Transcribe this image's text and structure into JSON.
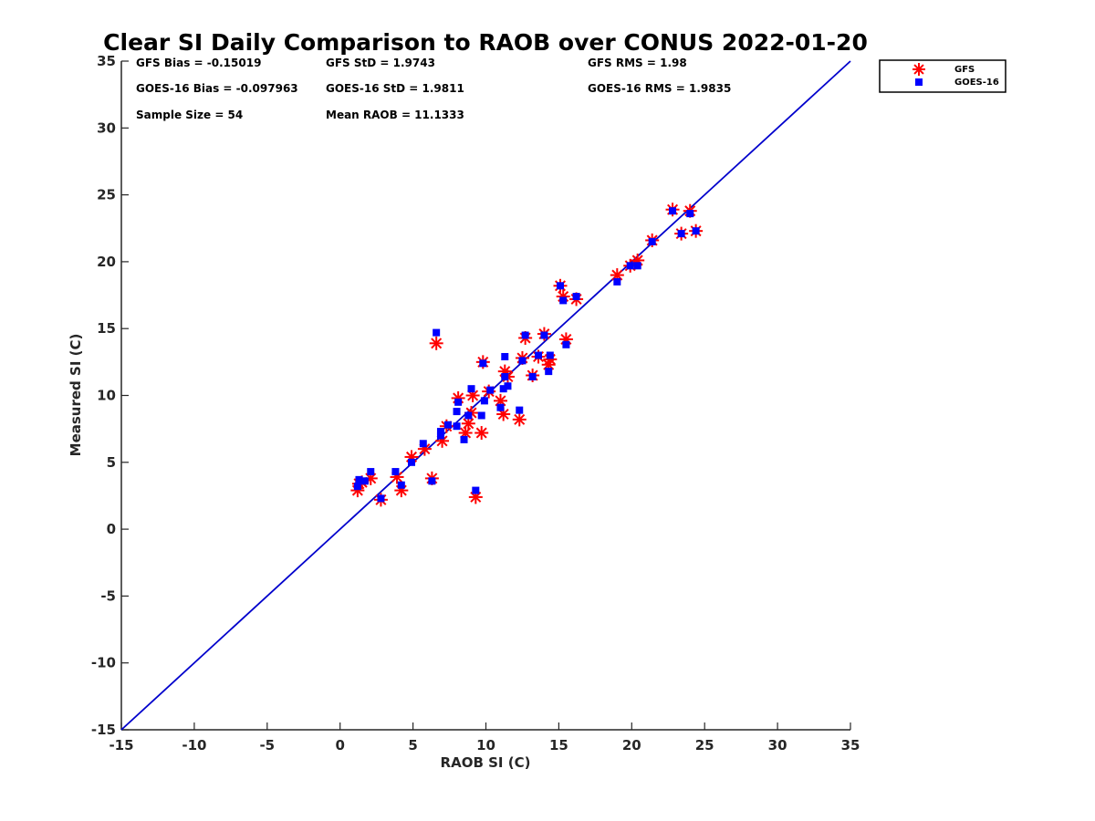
{
  "chart_data": {
    "type": "scatter",
    "title": "Clear SI Daily Comparison to RAOB over CONUS 2022-01-20",
    "xlabel": "RAOB SI (C)",
    "ylabel": "Measured SI (C)",
    "xlim": [
      -15,
      35
    ],
    "ylim": [
      -15,
      35
    ],
    "xticks": [
      "-15",
      "-10",
      "-5",
      "0",
      "5",
      "10",
      "15",
      "20",
      "25",
      "30",
      "35"
    ],
    "yticks": [
      "-15",
      "-10",
      "-5",
      "0",
      "5",
      "10",
      "15",
      "20",
      "25",
      "30",
      "35"
    ],
    "grid": false,
    "legend_position": "outside-top-right",
    "reference_line": {
      "from": [
        -15,
        -15
      ],
      "to": [
        35,
        35
      ],
      "color": "#0000cc"
    },
    "stats": [
      {
        "text": "GFS Bias = -0.15019"
      },
      {
        "text": "GFS StD = 1.9743"
      },
      {
        "text": "GFS RMS = 1.98"
      },
      {
        "text": "GOES-16 Bias = -0.097963"
      },
      {
        "text": "GOES-16 StD = 1.9811"
      },
      {
        "text": "GOES-16 RMS = 1.9835"
      },
      {
        "text": "Sample Size = 54"
      },
      {
        "text": "Mean RAOB = 11.1333"
      }
    ],
    "series": [
      {
        "name": "GFS",
        "marker": "asterisk",
        "color": "#ff0000",
        "points": [
          [
            1.2,
            2.9
          ],
          [
            1.3,
            3.4
          ],
          [
            1.5,
            3.5
          ],
          [
            2.1,
            3.8
          ],
          [
            2.8,
            2.2
          ],
          [
            3.9,
            3.9
          ],
          [
            4.2,
            2.9
          ],
          [
            4.9,
            5.4
          ],
          [
            5.8,
            6.0
          ],
          [
            6.3,
            3.8
          ],
          [
            6.6,
            13.9
          ],
          [
            7.0,
            6.6
          ],
          [
            7.3,
            7.7
          ],
          [
            8.1,
            9.8
          ],
          [
            8.6,
            7.2
          ],
          [
            8.8,
            7.9
          ],
          [
            9.0,
            8.7
          ],
          [
            9.1,
            10.0
          ],
          [
            9.3,
            2.4
          ],
          [
            9.7,
            7.2
          ],
          [
            9.8,
            12.5
          ],
          [
            10.2,
            10.3
          ],
          [
            11.0,
            9.6
          ],
          [
            11.2,
            8.6
          ],
          [
            11.3,
            11.8
          ],
          [
            11.5,
            11.4
          ],
          [
            12.3,
            8.2
          ],
          [
            12.5,
            12.8
          ],
          [
            12.7,
            14.3
          ],
          [
            13.2,
            11.5
          ],
          [
            13.6,
            12.9
          ],
          [
            14.0,
            14.6
          ],
          [
            14.3,
            12.3
          ],
          [
            14.4,
            12.7
          ],
          [
            15.1,
            18.2
          ],
          [
            15.3,
            17.4
          ],
          [
            15.5,
            14.2
          ],
          [
            16.2,
            17.2
          ],
          [
            19.0,
            19.0
          ],
          [
            19.9,
            19.7
          ],
          [
            20.4,
            20.1
          ],
          [
            21.4,
            21.6
          ],
          [
            22.8,
            23.9
          ],
          [
            23.4,
            22.1
          ],
          [
            24.0,
            23.8
          ],
          [
            24.4,
            22.3
          ]
        ]
      },
      {
        "name": "GOES-16",
        "marker": "square",
        "color": "#0000ff",
        "points": [
          [
            1.2,
            3.2
          ],
          [
            1.3,
            3.7
          ],
          [
            1.7,
            3.6
          ],
          [
            2.1,
            4.3
          ],
          [
            2.8,
            2.3
          ],
          [
            3.8,
            4.3
          ],
          [
            4.2,
            3.3
          ],
          [
            4.9,
            5.0
          ],
          [
            5.7,
            6.4
          ],
          [
            6.3,
            3.6
          ],
          [
            6.6,
            14.7
          ],
          [
            6.9,
            7.0
          ],
          [
            6.9,
            7.3
          ],
          [
            7.4,
            7.8
          ],
          [
            8.0,
            7.7
          ],
          [
            8.0,
            8.8
          ],
          [
            8.1,
            9.5
          ],
          [
            8.5,
            6.7
          ],
          [
            8.8,
            8.5
          ],
          [
            9.0,
            10.5
          ],
          [
            9.3,
            2.9
          ],
          [
            9.7,
            8.5
          ],
          [
            9.8,
            12.4
          ],
          [
            9.9,
            9.6
          ],
          [
            10.3,
            10.4
          ],
          [
            11.0,
            9.1
          ],
          [
            11.2,
            10.5
          ],
          [
            11.3,
            11.4
          ],
          [
            11.3,
            12.9
          ],
          [
            11.5,
            10.7
          ],
          [
            12.3,
            8.9
          ],
          [
            12.5,
            12.6
          ],
          [
            12.7,
            14.5
          ],
          [
            13.2,
            11.4
          ],
          [
            13.6,
            13.0
          ],
          [
            14.0,
            14.5
          ],
          [
            14.3,
            11.8
          ],
          [
            14.4,
            13.0
          ],
          [
            15.1,
            18.2
          ],
          [
            15.3,
            17.1
          ],
          [
            15.5,
            13.8
          ],
          [
            16.2,
            17.4
          ],
          [
            19.0,
            18.5
          ],
          [
            19.9,
            19.7
          ],
          [
            20.4,
            19.7
          ],
          [
            21.4,
            21.5
          ],
          [
            22.8,
            23.8
          ],
          [
            23.4,
            22.1
          ],
          [
            24.0,
            23.6
          ],
          [
            24.4,
            22.3
          ]
        ]
      }
    ]
  }
}
